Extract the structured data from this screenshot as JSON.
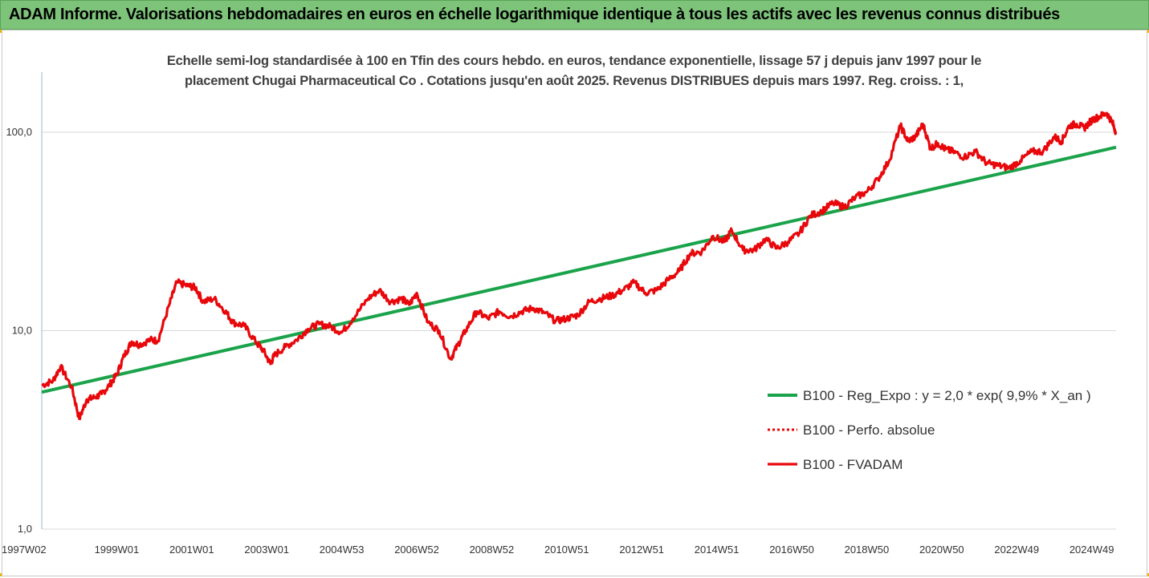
{
  "header": {
    "title": "ADAM Informe. Valorisations hebdomadaires en euros en échelle logarithmique identique à tous les actifs avec les revenus connus distribués"
  },
  "colors": {
    "header_bg": "#7dc47a",
    "trend": "#1aa34a",
    "series": "#e8070b",
    "grid": "#d9d9d9"
  },
  "chart_data": {
    "type": "line",
    "title": "Echelle semi-log standardisée à 100 en Tfin des cours hebdo. en euros, tendance exponentielle, lissage 57 j depuis janv 1997 pour le placement Chugai Pharmaceutical Co . Cotations jusqu'en août 2025.  Revenus DISTRIBUES depuis mars 1997. Reg. croiss. : 1,",
    "y_scale": "log",
    "ylim": [
      1,
      200
    ],
    "xlim": [
      1997.0,
      2025.65
    ],
    "y_ticks": [
      {
        "value": 1,
        "label": "1,0"
      },
      {
        "value": 10,
        "label": "10,0"
      },
      {
        "value": 100,
        "label": "100,0"
      }
    ],
    "x_ticks": [
      {
        "value": 1997.02,
        "label": "1997W02"
      },
      {
        "value": 1999.0,
        "label": "1999W01"
      },
      {
        "value": 2001.0,
        "label": "2001W01"
      },
      {
        "value": 2003.0,
        "label": "2003W01"
      },
      {
        "value": 2005.0,
        "label": "2004W53"
      },
      {
        "value": 2007.0,
        "label": "2006W52"
      },
      {
        "value": 2009.0,
        "label": "2008W52"
      },
      {
        "value": 2011.0,
        "label": "2010W51"
      },
      {
        "value": 2013.0,
        "label": "2012W51"
      },
      {
        "value": 2015.0,
        "label": "2014W51"
      },
      {
        "value": 2017.0,
        "label": "2016W50"
      },
      {
        "value": 2019.0,
        "label": "2018W50"
      },
      {
        "value": 2021.0,
        "label": "2020W50"
      },
      {
        "value": 2023.0,
        "label": "2022W49"
      },
      {
        "value": 2025.0,
        "label": "2024W49"
      }
    ],
    "grid": true,
    "legend_position": "right",
    "series": [
      {
        "name": "B100 - Reg_Expo : y = 2,0 * exp( 9,9% *  X_an )",
        "style": "solid",
        "x": [
          1997.0,
          2025.65
        ],
        "values": [
          4.9,
          84
        ]
      },
      {
        "name": "B100 - Perfo. absolue",
        "style": "dotted",
        "x": [],
        "values": []
      },
      {
        "name": "B100 - FVADAM",
        "style": "solid",
        "x": [
          1997.0,
          1997.3,
          1997.5,
          1997.8,
          1998.0,
          1998.2,
          1998.4,
          1998.6,
          1998.8,
          1999.0,
          1999.2,
          1999.4,
          1999.6,
          1999.9,
          2000.1,
          2000.4,
          2000.6,
          2000.9,
          2001.1,
          2001.3,
          2001.6,
          2001.9,
          2002.1,
          2002.4,
          2002.7,
          2002.9,
          2003.1,
          2003.2,
          2003.5,
          2003.8,
          2004.1,
          2004.4,
          2004.7,
          2005.0,
          2005.3,
          2005.7,
          2006.0,
          2006.3,
          2006.6,
          2006.8,
          2007.0,
          2007.3,
          2007.6,
          2007.9,
          2008.1,
          2008.3,
          2008.6,
          2008.9,
          2009.2,
          2009.5,
          2009.8,
          2010.1,
          2010.4,
          2010.7,
          2011.0,
          2011.3,
          2011.6,
          2011.9,
          2012.2,
          2012.5,
          2012.8,
          2013.1,
          2013.4,
          2013.7,
          2014.0,
          2014.3,
          2014.6,
          2014.9,
          2015.2,
          2015.4,
          2015.7,
          2016.0,
          2016.3,
          2016.6,
          2016.9,
          2017.2,
          2017.5,
          2017.8,
          2018.1,
          2018.4,
          2018.7,
          2019.0,
          2019.3,
          2019.6,
          2019.9,
          2020.1,
          2020.3,
          2020.5,
          2020.7,
          2020.9,
          2021.1,
          2021.3,
          2021.6,
          2021.9,
          2022.2,
          2022.5,
          2022.8,
          2023.1,
          2023.4,
          2023.7,
          2024.0,
          2024.2,
          2024.4,
          2024.6,
          2024.8,
          2025.0,
          2025.2,
          2025.4,
          2025.55,
          2025.65
        ],
        "values": [
          5.3,
          5.6,
          6.6,
          5.2,
          3.6,
          4.5,
          4.6,
          4.8,
          5.3,
          6.0,
          7.5,
          8.8,
          8.5,
          9.0,
          8.9,
          13.5,
          17.5,
          16.8,
          16.5,
          14.0,
          14.5,
          12.5,
          11.0,
          10.6,
          8.8,
          8.0,
          6.8,
          7.5,
          8.3,
          9.0,
          10.2,
          10.8,
          10.5,
          9.8,
          11.5,
          14.5,
          16.0,
          14.0,
          14.5,
          13.5,
          15.5,
          11.0,
          10.0,
          7.2,
          8.5,
          10.0,
          12.5,
          11.5,
          12.5,
          11.8,
          12.5,
          13.0,
          12.3,
          11.2,
          11.5,
          12.0,
          14.0,
          14.5,
          15.0,
          16.0,
          17.5,
          15.5,
          16.0,
          18.0,
          20.0,
          24.5,
          25.0,
          30.0,
          28.0,
          32.0,
          25.5,
          25.5,
          29.0,
          26.0,
          28.0,
          31.0,
          38.0,
          40.0,
          44.0,
          42.0,
          47.0,
          50.0,
          58.0,
          72.0,
          108.0,
          90.0,
          95.0,
          110.0,
          83.0,
          88.0,
          82.0,
          80.0,
          75.0,
          80.0,
          70.0,
          68.0,
          66.0,
          72.0,
          80.0,
          80.0,
          95.0,
          90.0,
          108.0,
          110.0,
          105.0,
          115.0,
          120.0,
          125.0,
          112.0,
          100.0
        ]
      }
    ]
  }
}
